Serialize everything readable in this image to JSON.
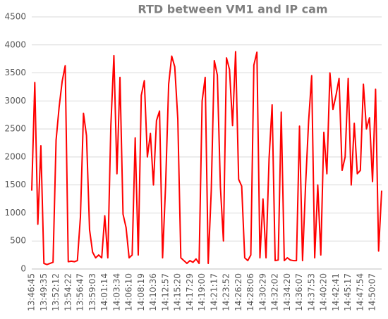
{
  "chart_data": {
    "type": "line",
    "title": "RTD between VM1 and IP cam",
    "categories": [
      "13:46:45",
      null,
      null,
      null,
      "13:49:35",
      null,
      null,
      null,
      "13:52:12",
      null,
      null,
      null,
      "13:54:22",
      null,
      null,
      null,
      "13:56:47",
      null,
      null,
      null,
      "13:59:03",
      null,
      null,
      null,
      "14:01:14",
      null,
      null,
      null,
      "14:03:34",
      null,
      null,
      null,
      "14:06:10",
      null,
      null,
      null,
      "14:08:19",
      null,
      null,
      null,
      "14:10:36",
      null,
      null,
      null,
      "14:12:57",
      null,
      null,
      null,
      "14:15:20",
      null,
      null,
      null,
      "14:17:29",
      null,
      null,
      null,
      "14:19:00",
      null,
      null,
      null,
      "14:21:17",
      null,
      null,
      null,
      "14:23:52",
      null,
      null,
      null,
      "14:26:20",
      null,
      null,
      null,
      "14:28:06",
      null,
      null,
      null,
      "14:30:29",
      null,
      null,
      null,
      "14:32:02",
      null,
      null,
      null,
      "14:34:20",
      null,
      null,
      null,
      "14:36:07",
      null,
      null,
      null,
      "14:37:53",
      null,
      null,
      null,
      "14:40:20",
      null,
      null,
      null,
      "14:42:41",
      null,
      null,
      null,
      "14:45:17",
      null,
      null,
      null,
      "14:47:54",
      null,
      null,
      null,
      "14:50:07",
      null,
      null,
      null
    ],
    "values": [
      1400,
      3330,
      800,
      2200,
      100,
      80,
      100,
      120,
      2300,
      2890,
      3350,
      3630,
      130,
      140,
      130,
      150,
      930,
      2780,
      2380,
      700,
      300,
      200,
      250,
      200,
      950,
      200,
      2560,
      3810,
      1700,
      3420,
      980,
      740,
      200,
      250,
      2340,
      250,
      3100,
      3360,
      2000,
      2420,
      1500,
      2650,
      2820,
      200,
      1500,
      3300,
      3800,
      3610,
      2680,
      200,
      150,
      100,
      150,
      120,
      180,
      100,
      3000,
      3420,
      100,
      1400,
      3720,
      3460,
      1470,
      500,
      3770,
      3560,
      2560,
      3880,
      1600,
      1480,
      200,
      150,
      250,
      3640,
      3870,
      200,
      1250,
      200,
      1970,
      2930,
      150,
      160,
      2800,
      150,
      200,
      160,
      150,
      150,
      2550,
      150,
      1500,
      2640,
      3450,
      200,
      1500,
      250,
      2440,
      1700,
      3500,
      2850,
      3100,
      3400,
      1760,
      2000,
      3400,
      1500,
      2600,
      1700,
      1760,
      3300,
      2500,
      2700,
      1560,
      3210,
      320,
      1400
    ],
    "color": "#ff0000",
    "ylim": [
      0,
      4500
    ],
    "yticks": [
      0,
      500,
      1000,
      1500,
      2000,
      2500,
      3000,
      3500,
      4000,
      4500
    ],
    "grid": true
  }
}
